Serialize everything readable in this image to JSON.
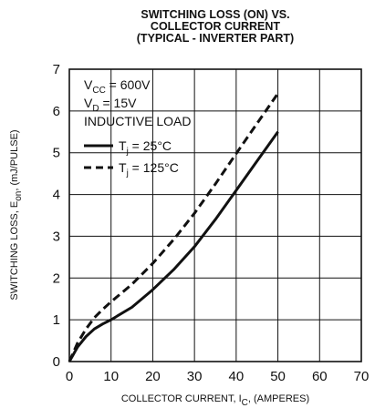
{
  "chart_data": {
    "type": "line",
    "title": [
      "SWITCHING LOSS (ON) VS.",
      "COLLECTOR CURRENT",
      "(TYPICAL - INVERTER PART)"
    ],
    "xlabel": {
      "main": "COLLECTOR CURRENT, I",
      "sub": "C",
      "rest": ", (AMPERES)"
    },
    "ylabel": {
      "main": "SWITCHING LOSS, E",
      "sub": "on",
      "rest": ",  (mJ/PULSE)"
    },
    "xlim": [
      0,
      70
    ],
    "ylim": [
      0,
      7
    ],
    "xticks": [
      0,
      10,
      20,
      30,
      40,
      50,
      60,
      70
    ],
    "yticks": [
      0,
      1,
      2,
      3,
      4,
      5,
      6,
      7
    ],
    "grid": true,
    "conditions": [
      {
        "main": "V",
        "sub": "CC",
        "rest": " = 600V"
      },
      {
        "main": "V",
        "sub": "D",
        "rest": " = 15V"
      },
      {
        "main": "INDUCTIVE LOAD",
        "sub": "",
        "rest": ""
      }
    ],
    "legend_position": "top-left",
    "series": [
      {
        "name": {
          "main": "T",
          "sub": "j",
          "rest": " = 25°C"
        },
        "style": "solid",
        "x": [
          0,
          2,
          4,
          6,
          8,
          10,
          15,
          20,
          25,
          30,
          35,
          40,
          45,
          50
        ],
        "y": [
          0,
          0.35,
          0.6,
          0.78,
          0.9,
          1.0,
          1.3,
          1.72,
          2.2,
          2.75,
          3.4,
          4.1,
          4.8,
          5.5
        ]
      },
      {
        "name": {
          "main": "T",
          "sub": "j",
          "rest": " = 125°C"
        },
        "style": "dashed",
        "x": [
          0,
          2,
          4,
          6,
          8,
          10,
          15,
          20,
          25,
          30,
          35,
          40,
          45,
          50
        ],
        "y": [
          0,
          0.45,
          0.78,
          1.05,
          1.25,
          1.43,
          1.85,
          2.35,
          2.92,
          3.55,
          4.25,
          4.98,
          5.7,
          6.42
        ]
      }
    ]
  }
}
